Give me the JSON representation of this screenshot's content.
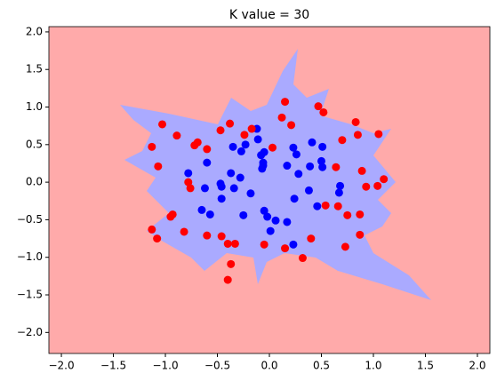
{
  "chart_data": {
    "type": "scatter",
    "title": "K value = 30",
    "xlim": [
      -2.12,
      2.12
    ],
    "ylim": [
      -2.28,
      2.07
    ],
    "xticks": [
      {
        "value": -2.0,
        "label": "−2.0"
      },
      {
        "value": -1.5,
        "label": "−1.5"
      },
      {
        "value": -1.0,
        "label": "−1.0"
      },
      {
        "value": -0.5,
        "label": "−0.5"
      },
      {
        "value": 0.0,
        "label": "0.0"
      },
      {
        "value": 0.5,
        "label": "0.5"
      },
      {
        "value": 1.0,
        "label": "1.0"
      },
      {
        "value": 1.5,
        "label": "1.5"
      },
      {
        "value": 2.0,
        "label": "2.0"
      }
    ],
    "yticks": [
      {
        "value": -2.0,
        "label": "−2.0"
      },
      {
        "value": -1.5,
        "label": "−1.5"
      },
      {
        "value": -1.0,
        "label": "−1.0"
      },
      {
        "value": -0.5,
        "label": "−0.5"
      },
      {
        "value": 0.0,
        "label": "0.0"
      },
      {
        "value": 0.5,
        "label": "0.5"
      },
      {
        "value": 1.0,
        "label": "1.0"
      },
      {
        "value": 1.5,
        "label": "1.5"
      },
      {
        "value": 2.0,
        "label": "2.0"
      }
    ],
    "series": [
      {
        "color": "#0000ff",
        "x": [
          -0.78,
          -0.6,
          -0.62,
          -0.47,
          -0.46,
          -0.46,
          -0.65,
          -0.57,
          -0.25,
          -0.35,
          -0.27,
          -0.23,
          -0.12,
          -0.11,
          -0.08,
          -0.06,
          -0.07,
          -0.06,
          -0.37,
          -0.28,
          -0.34,
          -0.18,
          -0.05,
          -0.02,
          0.01,
          0.06,
          0.17,
          0.23,
          0.24,
          0.23,
          0.26,
          0.41,
          0.51,
          0.17,
          0.28,
          0.39,
          0.38,
          0.51,
          0.68,
          0.67,
          0.46,
          0.5,
          -0.05
        ],
        "values": [
          0.12,
          0.26,
          -0.08,
          -0.02,
          -0.06,
          -0.22,
          -0.37,
          -0.43,
          -0.44,
          0.47,
          0.41,
          0.5,
          0.71,
          0.57,
          0.36,
          0.22,
          0.18,
          0.26,
          0.12,
          0.06,
          -0.08,
          -0.15,
          -0.38,
          -0.46,
          -0.65,
          -0.51,
          -0.53,
          -0.83,
          -0.22,
          0.46,
          0.37,
          0.53,
          0.47,
          0.22,
          0.11,
          0.21,
          -0.11,
          0.2,
          -0.05,
          -0.14,
          -0.32,
          0.28,
          0.4
        ]
      },
      {
        "color": "#ff0000",
        "x": [
          -1.03,
          -1.13,
          -1.07,
          -0.89,
          -0.78,
          -0.76,
          -0.72,
          -0.69,
          -0.6,
          -0.47,
          -0.38,
          -0.24,
          -0.17,
          0.03,
          0.15,
          0.12,
          0.21,
          0.47,
          0.52,
          0.7,
          0.83,
          0.85,
          0.64,
          0.93,
          0.89,
          1.04,
          1.1,
          1.05,
          0.66,
          0.75,
          0.87,
          0.87,
          0.73,
          0.4,
          0.32,
          0.15,
          -0.05,
          -0.33,
          -0.4,
          -0.37,
          -0.4,
          -0.46,
          -0.6,
          -0.82,
          -0.93,
          -0.95,
          -1.13,
          -1.08,
          0.54
        ],
        "values": [
          0.77,
          0.47,
          0.21,
          0.62,
          0.0,
          -0.08,
          0.49,
          0.53,
          0.44,
          0.69,
          0.78,
          0.63,
          0.71,
          0.46,
          1.07,
          0.86,
          0.76,
          1.01,
          0.93,
          0.56,
          0.8,
          0.63,
          0.2,
          -0.06,
          0.15,
          -0.05,
          0.04,
          0.64,
          -0.32,
          -0.44,
          -0.43,
          -0.7,
          -0.86,
          -0.75,
          -1.01,
          -0.88,
          -0.83,
          -0.82,
          -0.82,
          -1.09,
          -1.3,
          -0.72,
          -0.71,
          -0.66,
          -0.43,
          -0.46,
          -0.63,
          -0.75,
          -0.31
        ]
      }
    ]
  }
}
